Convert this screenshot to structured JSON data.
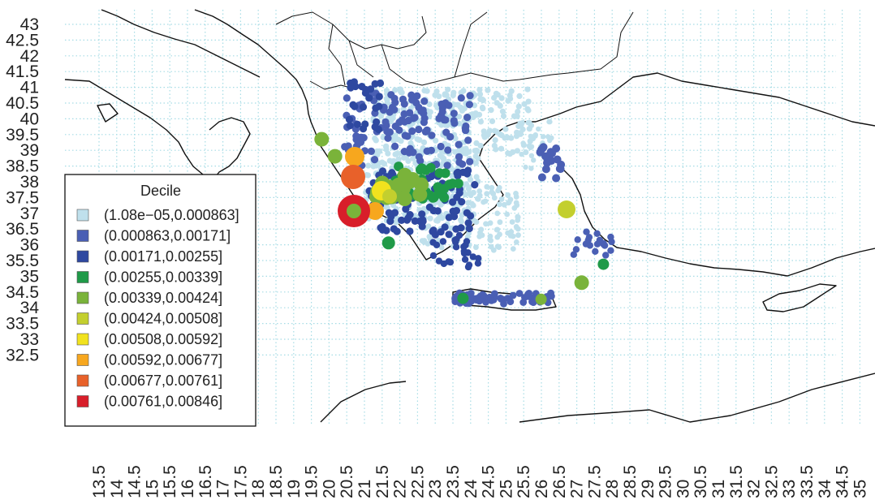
{
  "map": {
    "region": "Greece and eastern Mediterranean",
    "grid_color": "#a6dce5",
    "coast_color": "#111111",
    "y_ticks": [
      "43",
      "42.5",
      "42",
      "41.5",
      "41",
      "40.5",
      "40",
      "39.5",
      "39",
      "38.5",
      "38",
      "37.5",
      "37",
      "36.5",
      "36",
      "35.5",
      "35",
      "34.5",
      "34",
      "33.5",
      "33",
      "32.5"
    ],
    "x_ticks": [
      "13.5",
      "14",
      "14.5",
      "15",
      "15.5",
      "16",
      "16.5",
      "17",
      "17.5",
      "18",
      "18.5",
      "19",
      "19.5",
      "20",
      "20.5",
      "21",
      "21.5",
      "22",
      "22.5",
      "23",
      "23.5",
      "24",
      "24.5",
      "25",
      "25.5",
      "26",
      "26.5",
      "27",
      "27.5",
      "28",
      "28.5",
      "29",
      "29.5",
      "30",
      "30.5",
      "31",
      "31.5",
      "32",
      "32.5",
      "33",
      "33.5",
      "34",
      "34.5",
      "35"
    ]
  },
  "legend": {
    "title": "Decile",
    "items": [
      {
        "label": "(1.08e−05,0.000863]",
        "color": "#bfe0ec"
      },
      {
        "label": "(0.000863,0.00171]",
        "color": "#4a5fb4"
      },
      {
        "label": "(0.00171,0.00255]",
        "color": "#2e48a0"
      },
      {
        "label": "(0.00255,0.00339]",
        "color": "#1f9a48"
      },
      {
        "label": "(0.00339,0.00424]",
        "color": "#7ab33a"
      },
      {
        "label": "(0.00424,0.00508]",
        "color": "#c3cf2e"
      },
      {
        "label": "(0.00508,0.00592]",
        "color": "#f1e21e"
      },
      {
        "label": "(0.00592,0.00677]",
        "color": "#f7a71e"
      },
      {
        "label": "(0.00677,0.00761]",
        "color": "#e8612a"
      },
      {
        "label": "(0.00761,0.00846]",
        "color": "#d81e2a"
      }
    ]
  }
}
